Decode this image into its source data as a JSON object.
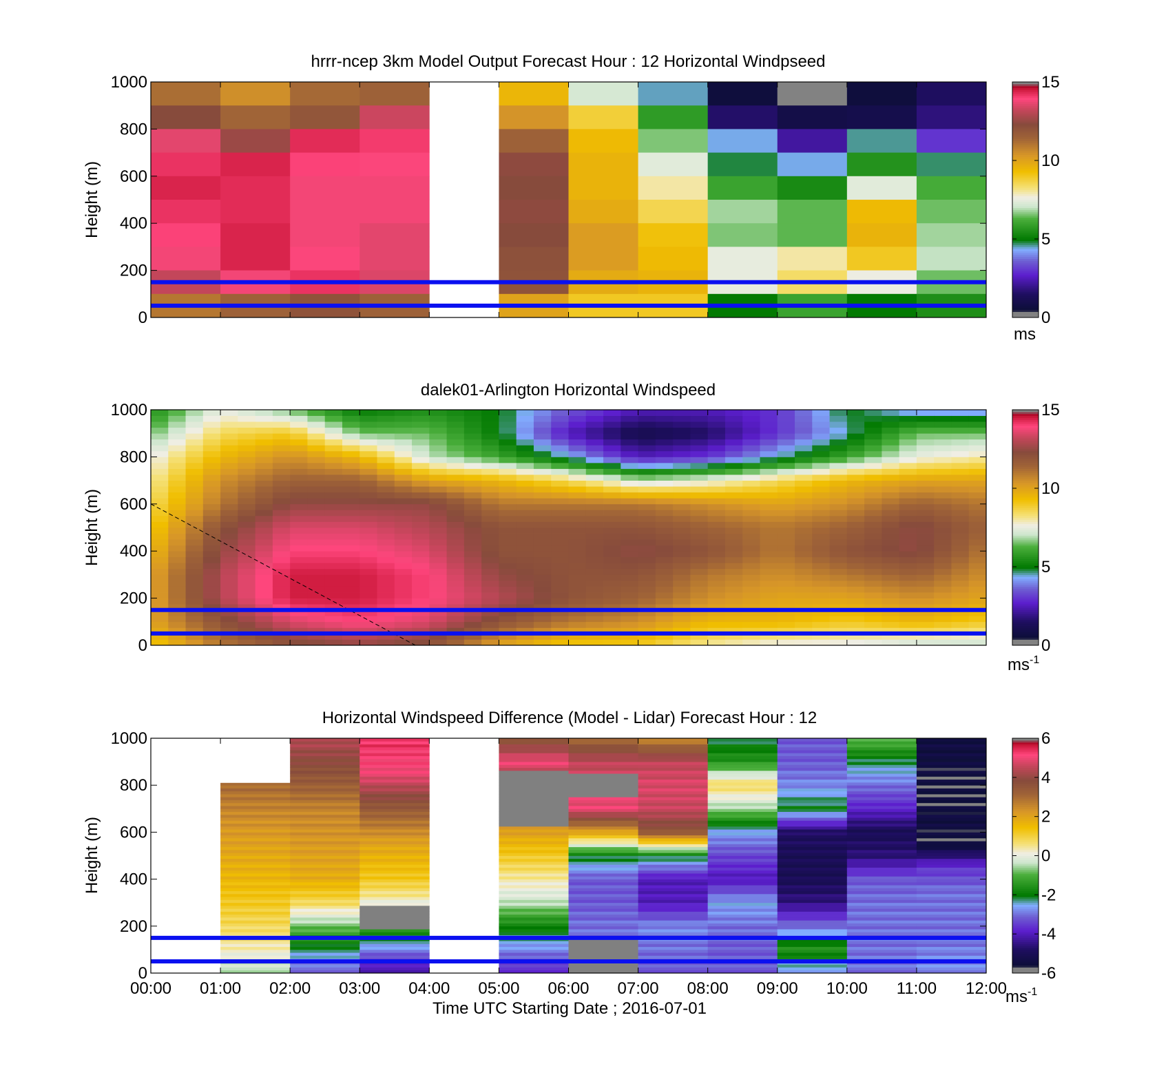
{
  "figure": {
    "xlabel": "Time UTC  Starting Date ; 2016-07-01"
  },
  "chart_data": [
    {
      "type": "heatmap",
      "id": "model",
      "title": "hrrr-ncep 3km Model Output   Forecast Hour : 12 Horizontal Windpseed",
      "ylabel": "Height (m)",
      "ylim": [
        0,
        1000
      ],
      "yticks": [
        "0",
        "200",
        "400",
        "600",
        "800",
        "1000"
      ],
      "xlim": [
        "00:00",
        "12:00"
      ],
      "x_bin_hours": 1,
      "y_levels_m": [
        1000,
        900,
        800,
        700,
        600,
        500,
        400,
        300,
        200,
        100,
        0
      ],
      "missing_columns": [
        5
      ],
      "reference_lines_m": [
        150,
        50
      ],
      "colorbar": {
        "min": 0,
        "max": 15,
        "ticks": [
          "0",
          "5",
          "10",
          "15"
        ],
        "unit": "ms",
        "unit_sup": ""
      },
      "values_by_hour": [
        [
          11.2,
          12.3,
          13.6,
          14.2,
          14.4,
          14.2,
          14.0,
          13.8,
          13.2,
          11.0
        ],
        [
          10.5,
          11.4,
          12.6,
          14.4,
          14.3,
          14.3,
          14.4,
          14.4,
          13.8,
          11.5
        ],
        [
          11.3,
          11.9,
          14.3,
          14.0,
          13.8,
          13.8,
          13.8,
          13.9,
          14.2,
          12.0
        ],
        [
          11.5,
          13.3,
          14.1,
          13.9,
          13.8,
          13.8,
          13.6,
          13.6,
          13.5,
          11.5
        ],
        null,
        [
          9.5,
          10.4,
          11.5,
          12.4,
          12.3,
          12.4,
          12.3,
          12.1,
          12.0,
          10.0
        ],
        [
          7.2,
          8.8,
          9.4,
          9.6,
          9.6,
          9.8,
          10.2,
          10.2,
          9.8,
          9.0
        ],
        [
          4.5,
          5.8,
          6.6,
          7.4,
          8.0,
          8.6,
          9.2,
          9.4,
          9.6,
          9.0
        ],
        [
          0.6,
          1.6,
          4.4,
          4.8,
          6.0,
          6.8,
          6.6,
          7.5,
          7.5,
          5.0
        ],
        [
          0.3,
          0.9,
          2.2,
          4.4,
          5.4,
          6.4,
          6.4,
          8.0,
          8.4,
          6.0
        ],
        [
          0.6,
          1.0,
          4.6,
          5.6,
          7.4,
          9.4,
          9.6,
          9.0,
          7.6,
          5.0
        ],
        [
          1.5,
          1.8,
          3.0,
          4.7,
          6.2,
          6.5,
          6.8,
          7.0,
          6.5,
          5.5
        ]
      ]
    },
    {
      "type": "heatmap",
      "id": "lidar",
      "title": "dalek01-Arlington  Horizontal Windspeed",
      "ylabel": "Height (m)",
      "ylim": [
        0,
        1000
      ],
      "yticks": [
        "0",
        "200",
        "400",
        "600",
        "800",
        "1000"
      ],
      "xlim": [
        "00:00",
        "12:00"
      ],
      "x_bin_hours": 0.25,
      "reference_lines_m": [
        150,
        50
      ],
      "annotation_line": {
        "from": [
          "00:00",
          600
        ],
        "to": [
          "03:48",
          0
        ]
      },
      "colorbar": {
        "min": 0,
        "max": 15,
        "ticks": [
          "0",
          "5",
          "10",
          "15"
        ],
        "unit": "ms",
        "unit_sup": "-1"
      },
      "profile_anchors_hours": [
        0,
        1,
        2,
        3,
        4,
        5,
        6,
        7,
        8,
        9,
        10,
        11,
        12
      ],
      "profile_levels_m": [
        1000,
        900,
        800,
        700,
        600,
        500,
        400,
        300,
        200,
        100,
        0
      ],
      "profiles": [
        [
          5.5,
          6.5,
          7.5,
          8.0,
          8.5,
          9.0,
          9.5,
          10.0,
          10.0,
          10.0,
          9.0
        ],
        [
          7.5,
          8.5,
          9.5,
          10.5,
          11.0,
          12.0,
          12.5,
          13.0,
          13.0,
          12.0,
          11.0
        ],
        [
          6.5,
          9.0,
          10.5,
          11.5,
          12.5,
          13.5,
          14.0,
          14.5,
          14.5,
          13.5,
          12.0
        ],
        [
          5.0,
          6.5,
          9.5,
          11.5,
          12.5,
          13.5,
          14.0,
          14.5,
          14.5,
          14.0,
          12.5
        ],
        [
          5.5,
          6.5,
          7.0,
          10.0,
          12.5,
          13.0,
          13.5,
          14.0,
          14.0,
          13.5,
          12.0
        ],
        [
          5.0,
          5.0,
          6.0,
          9.5,
          11.0,
          12.0,
          12.0,
          12.5,
          13.0,
          12.0,
          10.0
        ],
        [
          3.5,
          2.5,
          4.5,
          8.5,
          11.0,
          12.0,
          12.0,
          12.0,
          12.0,
          11.0,
          9.0
        ],
        [
          2.5,
          1.0,
          2.5,
          7.0,
          11.0,
          12.0,
          12.5,
          12.0,
          11.5,
          10.5,
          9.0
        ],
        [
          2.5,
          1.5,
          3.0,
          7.5,
          10.5,
          11.5,
          12.0,
          11.0,
          10.5,
          9.5,
          8.0
        ],
        [
          3.0,
          3.0,
          4.5,
          8.5,
          10.0,
          11.0,
          11.0,
          10.5,
          10.0,
          9.5,
          7.5
        ],
        [
          5.0,
          4.5,
          6.0,
          9.5,
          10.5,
          11.5,
          12.0,
          11.0,
          10.0,
          9.0,
          7.5
        ],
        [
          4.0,
          6.5,
          7.5,
          10.0,
          11.5,
          12.5,
          12.5,
          11.5,
          10.5,
          9.5,
          7.0
        ],
        [
          4.0,
          6.5,
          8.0,
          10.0,
          11.0,
          11.5,
          11.0,
          10.5,
          10.0,
          9.0,
          7.0
        ]
      ]
    },
    {
      "type": "heatmap",
      "id": "difference",
      "title": "Horizontal Windspeed Difference (Model - Lidar) Forecast Hour : 12",
      "ylabel": "Height (m)",
      "ylim": [
        0,
        1000
      ],
      "yticks": [
        "0",
        "200",
        "400",
        "600",
        "800",
        "1000"
      ],
      "xlim": [
        "00:00",
        "12:00"
      ],
      "xticks": [
        "00:00",
        "01:00",
        "02:00",
        "03:00",
        "04:00",
        "05:00",
        "06:00",
        "07:00",
        "08:00",
        "09:00",
        "10:00",
        "11:00",
        "12:00"
      ],
      "reference_lines_m": [
        150,
        50
      ],
      "colorbar": {
        "min": -6,
        "max": 6,
        "ticks": [
          "-6",
          "-4",
          "-2",
          "0",
          "2",
          "4",
          "6"
        ],
        "unit": "ms",
        "unit_sup": "-1"
      },
      "columns": [
        {
          "hour": 0,
          "top_m": 0,
          "levels_m": [],
          "values": []
        },
        {
          "hour": 1,
          "top_m": 810,
          "levels_m": [
            800,
            700,
            600,
            500,
            400,
            300,
            200,
            100,
            30
          ],
          "values": [
            3.0,
            2.6,
            2.2,
            1.9,
            1.6,
            1.2,
            0.8,
            0.3,
            -0.4
          ]
        },
        {
          "hour": 2,
          "top_m": 1000,
          "levels_m": [
            1000,
            850,
            700,
            550,
            400,
            300,
            200,
            100,
            30
          ],
          "values": [
            4.4,
            3.6,
            2.6,
            2.2,
            1.8,
            0.8,
            -0.8,
            -2.2,
            -3.0
          ]
        },
        {
          "hour": 3,
          "top_m": 1000,
          "levels_m": [
            1000,
            850,
            700,
            550,
            400,
            330,
            250,
            120,
            30
          ],
          "values": [
            5.4,
            5.0,
            3.4,
            2.0,
            1.2,
            0.5,
            null,
            -2.5,
            -4.0
          ]
        },
        {
          "hour": 4,
          "top_m": 0,
          "levels_m": [],
          "values": []
        },
        {
          "hour": 5,
          "top_m": 1000,
          "levels_m": [
            1000,
            900,
            820,
            700,
            550,
            450,
            300,
            200,
            100,
            30
          ],
          "values": [
            3.5,
            5.0,
            null,
            null,
            1.6,
            0.8,
            -0.4,
            -1.8,
            -2.8,
            -3.6
          ]
        },
        {
          "hour": 6,
          "top_m": 1000,
          "levels_m": [
            1000,
            900,
            800,
            700,
            600,
            500,
            400,
            300,
            200,
            100,
            30
          ],
          "values": [
            3.0,
            4.5,
            null,
            5.0,
            2.0,
            -2.0,
            -3.2,
            -3.2,
            -3.0,
            null,
            null
          ]
        },
        {
          "hour": 7,
          "top_m": 1000,
          "levels_m": [
            1000,
            900,
            800,
            700,
            600,
            500,
            400,
            300,
            200,
            100,
            30
          ],
          "values": [
            2.5,
            4.5,
            4.8,
            4.6,
            3.5,
            -2.0,
            -4.0,
            -4.0,
            -2.8,
            -3.0,
            -3.2
          ]
        },
        {
          "hour": 8,
          "top_m": 1000,
          "levels_m": [
            1000,
            900,
            800,
            700,
            600,
            500,
            400,
            300,
            200,
            100,
            30
          ],
          "values": [
            -2.2,
            -1.5,
            0.8,
            -0.6,
            -2.6,
            -3.4,
            -4.0,
            -2.6,
            -3.0,
            -3.2,
            -3.2
          ]
        },
        {
          "hour": 9,
          "top_m": 1000,
          "levels_m": [
            1000,
            900,
            800,
            700,
            600,
            500,
            400,
            300,
            200,
            100,
            30
          ],
          "values": [
            -3.2,
            -3.2,
            -2.8,
            -2.0,
            -4.8,
            -5.0,
            -5.0,
            -4.5,
            -3.0,
            -1.5,
            -2.5
          ]
        },
        {
          "hour": 10,
          "top_m": 1000,
          "levels_m": [
            1000,
            900,
            800,
            700,
            600,
            500,
            400,
            300,
            200,
            100,
            30
          ],
          "values": [
            -0.8,
            -2.2,
            -3.0,
            -3.8,
            -5.0,
            -4.6,
            -3.2,
            -3.0,
            -3.0,
            -3.0,
            -3.0
          ]
        },
        {
          "hour": 11,
          "top_m": 1000,
          "levels_m": [
            980,
            740,
            650,
            550,
            450,
            350,
            250,
            150,
            60
          ],
          "values": [
            -5.4,
            -5.6,
            -5.4,
            -5.6,
            -3.6,
            -3.0,
            -3.0,
            -3.0,
            -2.8
          ]
        }
      ]
    }
  ]
}
